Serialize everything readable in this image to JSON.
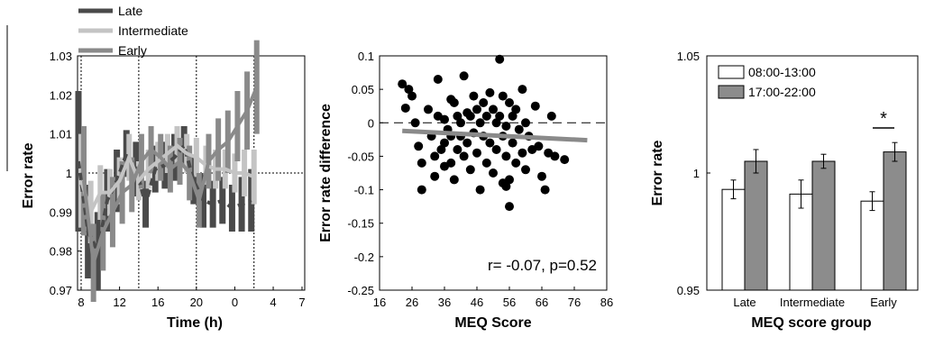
{
  "chart_data": [
    {
      "panel": "A",
      "type": "line",
      "xlabel": "Time (h)",
      "ylabel": "Error rate",
      "xticks": [
        "8",
        "12",
        "16",
        "20",
        "0",
        "4",
        "7"
      ],
      "ylim": [
        0.97,
        1.03
      ],
      "yticks": [
        "0.97",
        "0.98",
        "0.99",
        "1",
        "1.01",
        "1.02",
        "1.03"
      ],
      "reference_line_y": 1,
      "vertical_markers_h": [
        8,
        14,
        20,
        26
      ],
      "x": [
        8,
        9,
        10,
        11,
        12,
        13,
        14,
        15,
        16,
        17,
        18,
        19,
        20,
        21,
        22,
        23,
        24,
        25,
        26
      ],
      "series": [
        {
          "name": "Late",
          "color": "#4a4a4a",
          "values": [
            1.003,
            0.985,
            0.98,
            0.993,
            0.998,
            1.005,
            1.001,
            0.992,
            1.001,
            1.002,
            1.004,
            1.007,
            0.998,
            0.993,
            0.992,
            0.993,
            0.991,
            0.992,
            0.993
          ],
          "err": [
            0.018,
            0.012,
            0.01,
            0.008,
            0.008,
            0.006,
            0.007,
            0.006,
            0.006,
            0.006,
            0.006,
            0.005,
            0.006,
            0.007,
            0.006,
            0.006,
            0.006,
            0.007,
            0.008
          ]
        },
        {
          "name": "Intermediate",
          "color": "#c4c4c4",
          "values": [
            0.998,
            0.99,
            0.995,
            0.995,
            0.998,
            1.004,
            0.998,
            1.001,
            1.003,
            1.005,
            1.007,
            1.005,
            1.004,
            1.002,
            1.001,
            1.001,
            1.0,
            1.0,
            0.999
          ],
          "err": [
            0.012,
            0.008,
            0.007,
            0.006,
            0.006,
            0.006,
            0.005,
            0.005,
            0.005,
            0.005,
            0.005,
            0.005,
            0.005,
            0.005,
            0.005,
            0.005,
            0.005,
            0.006,
            0.007
          ]
        },
        {
          "name": "Early",
          "color": "#8a8a8a",
          "values": [
            0.998,
            0.977,
            0.985,
            0.99,
            0.995,
            0.997,
            1.003,
            1.006,
            1.004,
            1.001,
            1.003,
            1.0,
            0.993,
            1.003,
            1.006,
            1.008,
            1.012,
            1.016,
            1.022
          ],
          "err": [
            0.014,
            0.01,
            0.01,
            0.009,
            0.008,
            0.007,
            0.007,
            0.006,
            0.006,
            0.006,
            0.006,
            0.007,
            0.007,
            0.007,
            0.008,
            0.008,
            0.009,
            0.01,
            0.012
          ]
        }
      ]
    },
    {
      "panel": "B",
      "type": "scatter",
      "xlabel": "MEQ Score",
      "ylabel": "Error rate difference",
      "xlim": [
        16,
        86
      ],
      "xticks": [
        "16",
        "26",
        "36",
        "46",
        "56",
        "66",
        "76",
        "86"
      ],
      "ylim": [
        -0.25,
        0.1
      ],
      "yticks": [
        "0.1",
        "0.05",
        "0",
        "-0.05",
        "-0.1",
        "-0.15",
        "-0.2",
        "-0.25"
      ],
      "annotation": "r= -0.07, p=0.52",
      "fit": {
        "x0": 23,
        "y0": -0.012,
        "x1": 80,
        "y1": -0.026
      },
      "points": [
        [
          23,
          0.058
        ],
        [
          24,
          0.022
        ],
        [
          25,
          0.05
        ],
        [
          26,
          0.04
        ],
        [
          27,
          0.0
        ],
        [
          28,
          -0.035
        ],
        [
          29,
          -0.06
        ],
        [
          29,
          -0.1
        ],
        [
          31,
          0.02
        ],
        [
          32,
          -0.02
        ],
        [
          33,
          -0.05
        ],
        [
          33,
          -0.08
        ],
        [
          34,
          0.065
        ],
        [
          34,
          0.01
        ],
        [
          35,
          -0.04
        ],
        [
          36,
          -0.03
        ],
        [
          36,
          0.005
        ],
        [
          36,
          -0.065
        ],
        [
          37,
          -0.01
        ],
        [
          38,
          0.035
        ],
        [
          38,
          -0.02
        ],
        [
          38,
          -0.06
        ],
        [
          39,
          0.03
        ],
        [
          39,
          -0.085
        ],
        [
          40,
          0.01
        ],
        [
          40,
          -0.04
        ],
        [
          41,
          0.0
        ],
        [
          41,
          -0.02
        ],
        [
          42,
          -0.05
        ],
        [
          42,
          0.07
        ],
        [
          43,
          0.015
        ],
        [
          43,
          -0.03
        ],
        [
          44,
          -0.07
        ],
        [
          44,
          0.01
        ],
        [
          45,
          0.04
        ],
        [
          45,
          -0.015
        ],
        [
          46,
          0.02
        ],
        [
          46,
          -0.045
        ],
        [
          47,
          0.0
        ],
        [
          47,
          -0.1
        ],
        [
          48,
          0.03
        ],
        [
          48,
          -0.02
        ],
        [
          49,
          -0.06
        ],
        [
          49,
          0.01
        ],
        [
          50,
          0.045
        ],
        [
          50,
          -0.03
        ],
        [
          51,
          0.02
        ],
        [
          51,
          -0.075
        ],
        [
          52,
          0.0
        ],
        [
          52,
          -0.04
        ],
        [
          53,
          0.095
        ],
        [
          53,
          0.01
        ],
        [
          54,
          -0.02
        ],
        [
          54,
          0.04
        ],
        [
          55,
          -0.005
        ],
        [
          55,
          -0.05
        ],
        [
          56,
          0.03
        ],
        [
          56,
          -0.085
        ],
        [
          57,
          0.01
        ],
        [
          57,
          -0.03
        ],
        [
          58,
          -0.06
        ],
        [
          58,
          0.02
        ],
        [
          59,
          -0.01
        ],
        [
          60,
          -0.045
        ],
        [
          60,
          0.05
        ],
        [
          61,
          0.0
        ],
        [
          62,
          -0.02
        ],
        [
          63,
          -0.04
        ],
        [
          64,
          0.025
        ],
        [
          65,
          -0.035
        ],
        [
          66,
          -0.08
        ],
        [
          67,
          -0.1
        ],
        [
          68,
          -0.045
        ],
        [
          69,
          0.01
        ],
        [
          70,
          -0.05
        ],
        [
          73,
          -0.055
        ],
        [
          56,
          -0.125
        ],
        [
          55,
          -0.095
        ],
        [
          54,
          -0.09
        ],
        [
          61,
          -0.07
        ]
      ]
    },
    {
      "panel": "C",
      "type": "bar",
      "xlabel": "MEQ score group",
      "ylabel": "Error rate",
      "categories": [
        "Late",
        "Intermediate",
        "Early"
      ],
      "ylim": [
        0.95,
        1.05
      ],
      "yticks": [
        "1.05",
        "1",
        "0.95"
      ],
      "series": [
        {
          "name": "08:00-13:00",
          "color": "#ffffff",
          "values": [
            0.993,
            0.991,
            0.988
          ],
          "err": [
            0.004,
            0.006,
            0.004
          ]
        },
        {
          "name": "17:00-22:00",
          "color": "#8c8c8c",
          "values": [
            1.005,
            1.005,
            1.009
          ],
          "err": [
            0.005,
            0.003,
            0.004
          ]
        }
      ],
      "significance": {
        "category": "Early",
        "marker": "*"
      }
    }
  ]
}
